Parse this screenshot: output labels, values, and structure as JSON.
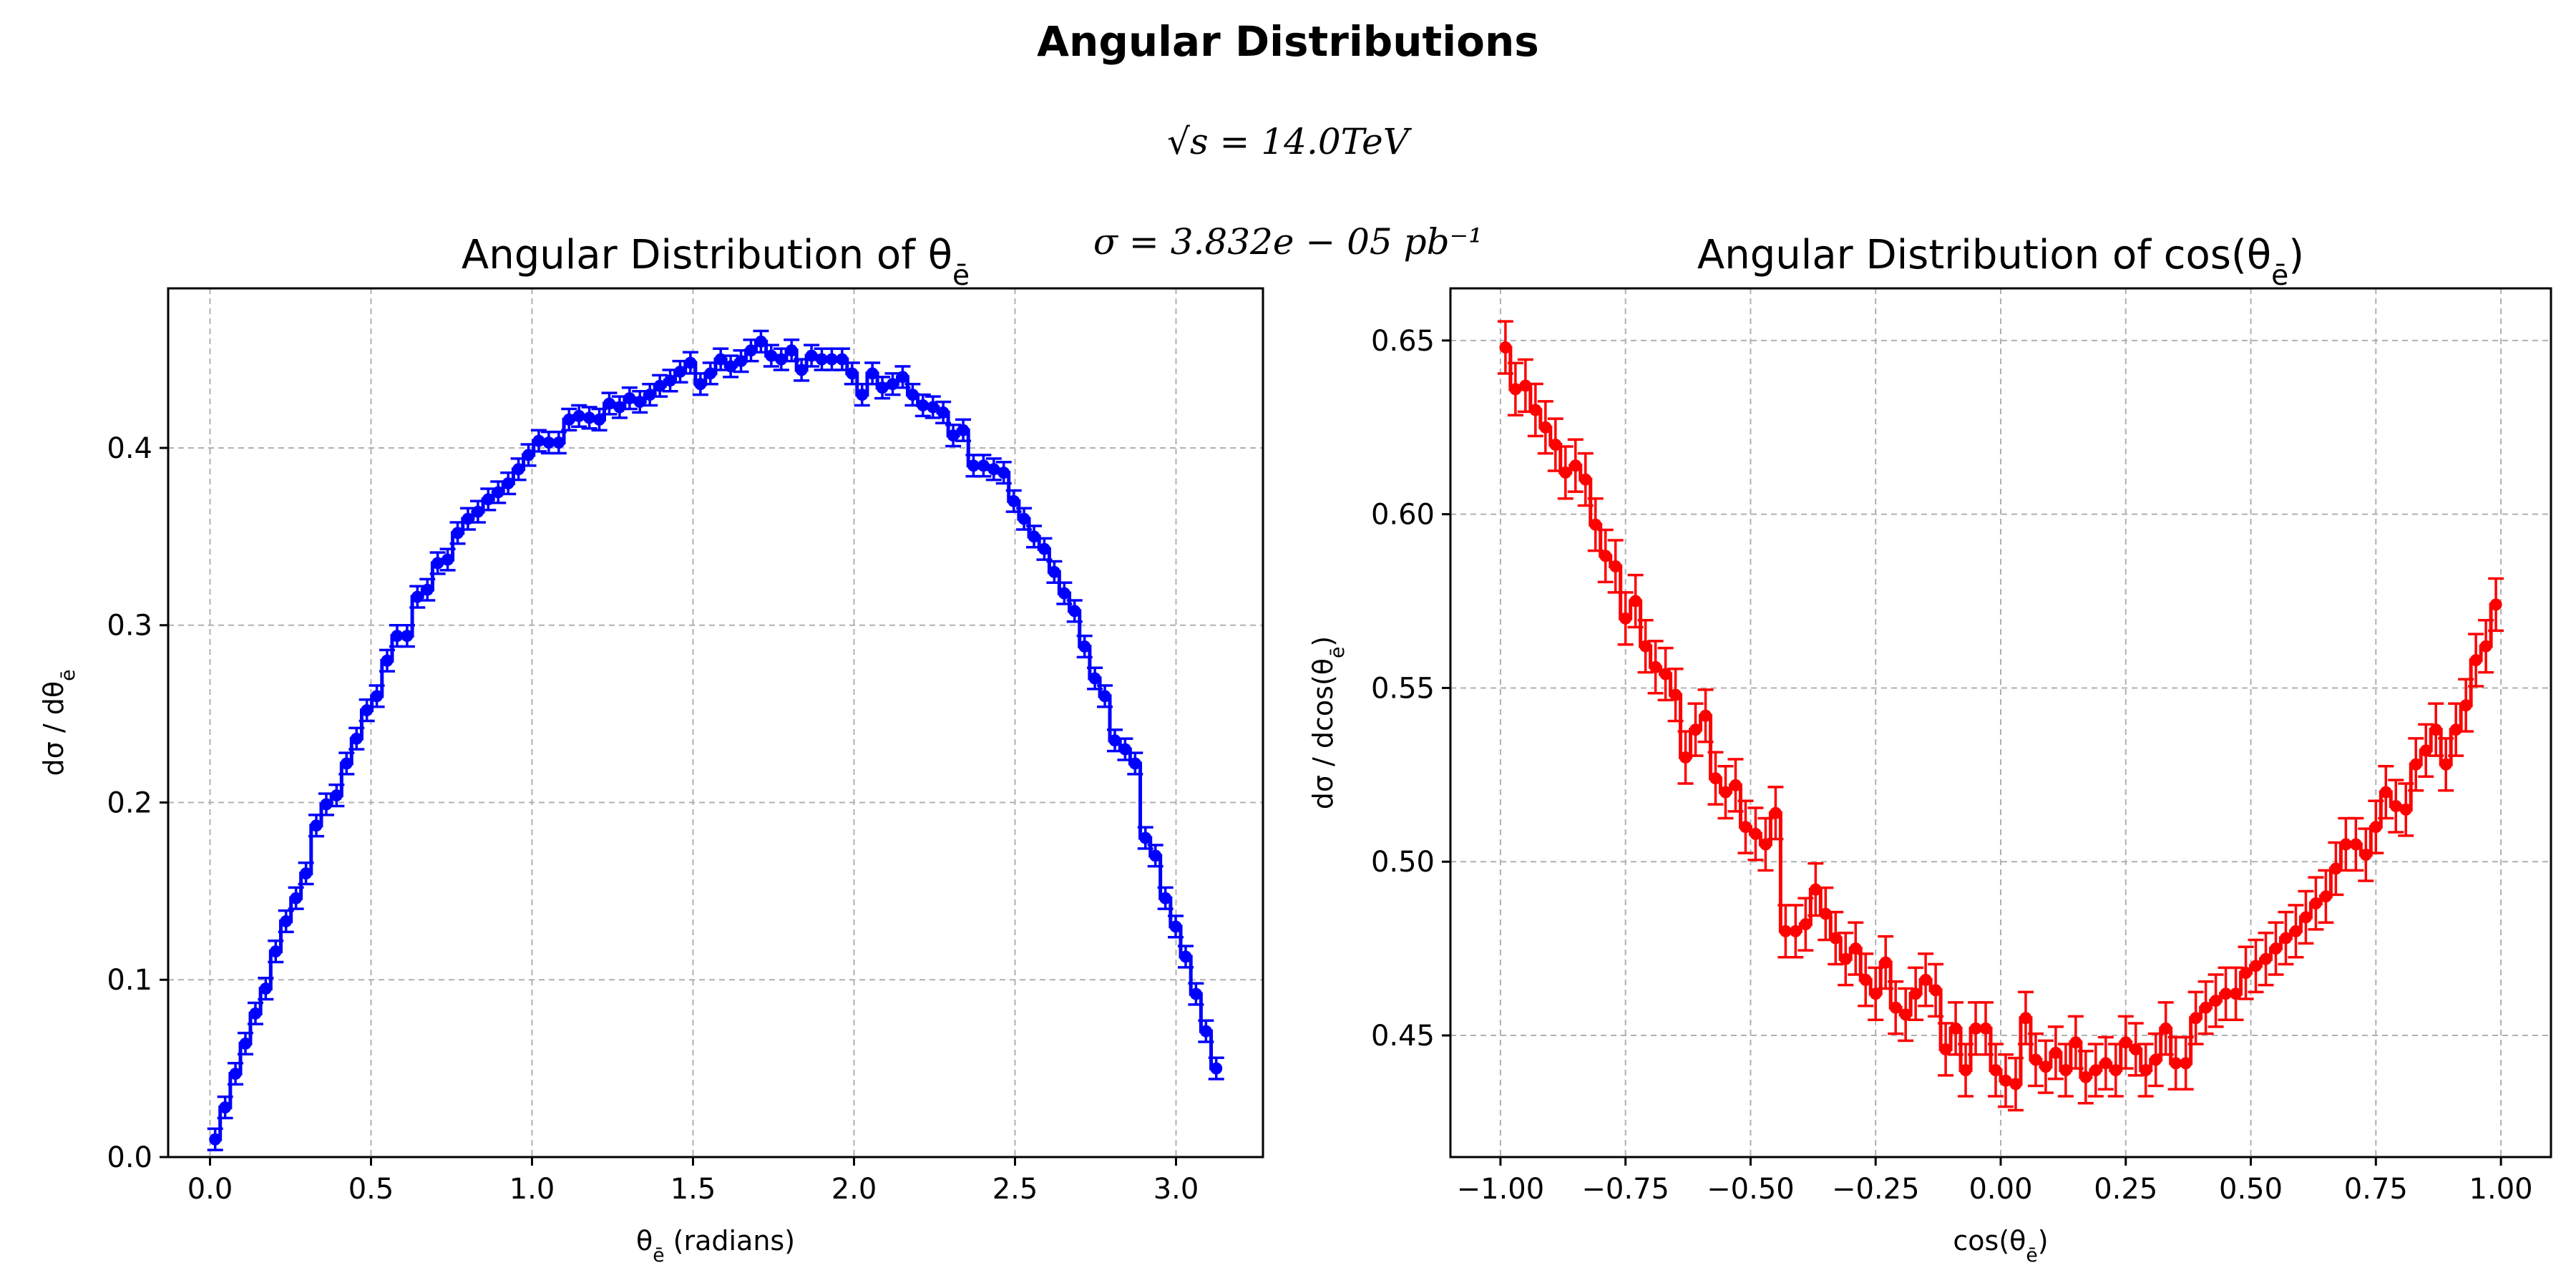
{
  "figure": {
    "suptitle": "Angular Distributions",
    "energy_text": "√s = 14.0TeV",
    "xsec_text": "σ = 3.832e − 05 pb⁻¹"
  },
  "chart_data": [
    {
      "type": "line",
      "title": "Angular Distribution of θ",
      "title_subscript": "ē",
      "xlabel": "θ",
      "xlabel_subscript": "ē",
      "xlabel_suffix": " (radians)",
      "ylabel": "dσ / dθ",
      "ylabel_subscript": "ē",
      "color": "#0000ff",
      "xlim": [
        -0.13,
        3.27
      ],
      "ylim": [
        0.0,
        0.49
      ],
      "xticks": [
        0.0,
        0.5,
        1.0,
        1.5,
        2.0,
        2.5,
        3.0
      ],
      "xtick_labels": [
        "0.0",
        "0.5",
        "1.0",
        "1.5",
        "2.0",
        "2.5",
        "3.0"
      ],
      "yticks": [
        0.0,
        0.1,
        0.2,
        0.3,
        0.4
      ],
      "ytick_labels": [
        "0.0",
        "0.1",
        "0.2",
        "0.3",
        "0.4"
      ],
      "grid": true,
      "series": [
        {
          "x": [
            0.016,
            0.047,
            0.079,
            0.11,
            0.141,
            0.173,
            0.204,
            0.236,
            0.267,
            0.298,
            0.33,
            0.361,
            0.393,
            0.424,
            0.455,
            0.487,
            0.518,
            0.55,
            0.581,
            0.612,
            0.644,
            0.675,
            0.707,
            0.738,
            0.769,
            0.801,
            0.832,
            0.864,
            0.895,
            0.926,
            0.958,
            0.989,
            1.021,
            1.052,
            1.083,
            1.115,
            1.146,
            1.178,
            1.209,
            1.24,
            1.272,
            1.303,
            1.335,
            1.366,
            1.397,
            1.429,
            1.46,
            1.492,
            1.523,
            1.554,
            1.586,
            1.617,
            1.649,
            1.68,
            1.711,
            1.743,
            1.774,
            1.806,
            1.837,
            1.868,
            1.9,
            1.931,
            1.963,
            1.994,
            2.025,
            2.057,
            2.088,
            2.12,
            2.151,
            2.182,
            2.214,
            2.245,
            2.277,
            2.308,
            2.339,
            2.371,
            2.402,
            2.434,
            2.465,
            2.496,
            2.528,
            2.559,
            2.591,
            2.622,
            2.653,
            2.685,
            2.716,
            2.748,
            2.779,
            2.81,
            2.842,
            2.873,
            2.905,
            2.936,
            2.967,
            2.999,
            3.03,
            3.062,
            3.093,
            3.125
          ],
          "y": [
            0.01,
            0.028,
            0.047,
            0.064,
            0.081,
            0.095,
            0.116,
            0.133,
            0.146,
            0.16,
            0.187,
            0.199,
            0.204,
            0.222,
            0.236,
            0.252,
            0.26,
            0.28,
            0.294,
            0.294,
            0.316,
            0.32,
            0.335,
            0.337,
            0.352,
            0.36,
            0.364,
            0.371,
            0.375,
            0.38,
            0.388,
            0.396,
            0.404,
            0.403,
            0.403,
            0.416,
            0.418,
            0.417,
            0.416,
            0.425,
            0.423,
            0.428,
            0.426,
            0.43,
            0.435,
            0.438,
            0.443,
            0.448,
            0.436,
            0.442,
            0.45,
            0.446,
            0.449,
            0.455,
            0.46,
            0.452,
            0.45,
            0.455,
            0.444,
            0.452,
            0.45,
            0.45,
            0.45,
            0.442,
            0.43,
            0.442,
            0.434,
            0.436,
            0.44,
            0.43,
            0.424,
            0.423,
            0.42,
            0.407,
            0.41,
            0.39,
            0.39,
            0.388,
            0.386,
            0.37,
            0.36,
            0.35,
            0.343,
            0.33,
            0.318,
            0.308,
            0.288,
            0.27,
            0.26,
            0.235,
            0.23,
            0.222,
            0.18,
            0.17,
            0.146,
            0.13,
            0.113,
            0.092,
            0.071,
            0.05
          ]
        }
      ]
    },
    {
      "type": "line",
      "title": "Angular Distribution of cos(θ",
      "title_subscript": "ē",
      "title_suffix": ")",
      "xlabel": "cos(θ",
      "xlabel_subscript": "ē",
      "xlabel_suffix": ")",
      "ylabel": "dσ / dcos(θ",
      "ylabel_subscript": "ē",
      "ylabel_suffix": ")",
      "color": "#ff0000",
      "xlim": [
        -1.1,
        1.1
      ],
      "ylim": [
        0.415,
        0.665
      ],
      "xticks": [
        -1.0,
        -0.75,
        -0.5,
        -0.25,
        0.0,
        0.25,
        0.5,
        0.75,
        1.0
      ],
      "xtick_labels": [
        "−1.00",
        "−0.75",
        "−0.50",
        "−0.25",
        "0.00",
        "0.25",
        "0.50",
        "0.75",
        "1.00"
      ],
      "yticks": [
        0.45,
        0.5,
        0.55,
        0.6,
        0.65
      ],
      "ytick_labels": [
        "0.45",
        "0.50",
        "0.55",
        "0.60",
        "0.65"
      ],
      "grid": true,
      "series": [
        {
          "x": [
            -0.99,
            -0.97,
            -0.95,
            -0.93,
            -0.91,
            -0.89,
            -0.87,
            -0.85,
            -0.83,
            -0.81,
            -0.79,
            -0.77,
            -0.75,
            -0.73,
            -0.71,
            -0.69,
            -0.67,
            -0.65,
            -0.63,
            -0.61,
            -0.59,
            -0.57,
            -0.55,
            -0.53,
            -0.51,
            -0.49,
            -0.47,
            -0.45,
            -0.43,
            -0.41,
            -0.39,
            -0.37,
            -0.35,
            -0.33,
            -0.31,
            -0.29,
            -0.27,
            -0.25,
            -0.23,
            -0.21,
            -0.19,
            -0.17,
            -0.15,
            -0.13,
            -0.11,
            -0.09,
            -0.07,
            -0.05,
            -0.03,
            -0.01,
            0.01,
            0.03,
            0.05,
            0.07,
            0.09,
            0.11,
            0.13,
            0.15,
            0.17,
            0.19,
            0.21,
            0.23,
            0.25,
            0.27,
            0.29,
            0.31,
            0.33,
            0.35,
            0.37,
            0.39,
            0.41,
            0.43,
            0.45,
            0.47,
            0.49,
            0.51,
            0.53,
            0.55,
            0.57,
            0.59,
            0.61,
            0.63,
            0.65,
            0.67,
            0.69,
            0.71,
            0.73,
            0.75,
            0.77,
            0.79,
            0.81,
            0.83,
            0.85,
            0.87,
            0.89,
            0.91,
            0.93,
            0.95,
            0.97,
            0.99
          ],
          "y": [
            0.648,
            0.636,
            0.637,
            0.63,
            0.625,
            0.62,
            0.612,
            0.614,
            0.61,
            0.597,
            0.588,
            0.585,
            0.57,
            0.575,
            0.562,
            0.556,
            0.554,
            0.548,
            0.53,
            0.538,
            0.542,
            0.524,
            0.52,
            0.522,
            0.51,
            0.508,
            0.505,
            0.514,
            0.48,
            0.48,
            0.482,
            0.492,
            0.485,
            0.478,
            0.472,
            0.475,
            0.466,
            0.462,
            0.471,
            0.458,
            0.456,
            0.462,
            0.466,
            0.463,
            0.446,
            0.452,
            0.44,
            0.452,
            0.452,
            0.44,
            0.437,
            0.436,
            0.455,
            0.443,
            0.441,
            0.445,
            0.44,
            0.448,
            0.438,
            0.44,
            0.442,
            0.44,
            0.448,
            0.446,
            0.44,
            0.443,
            0.452,
            0.442,
            0.442,
            0.455,
            0.458,
            0.46,
            0.462,
            0.462,
            0.468,
            0.47,
            0.472,
            0.475,
            0.478,
            0.48,
            0.484,
            0.488,
            0.49,
            0.498,
            0.505,
            0.505,
            0.502,
            0.51,
            0.52,
            0.516,
            0.515,
            0.528,
            0.532,
            0.538,
            0.528,
            0.538,
            0.545,
            0.558,
            0.562,
            0.574
          ]
        }
      ]
    }
  ]
}
